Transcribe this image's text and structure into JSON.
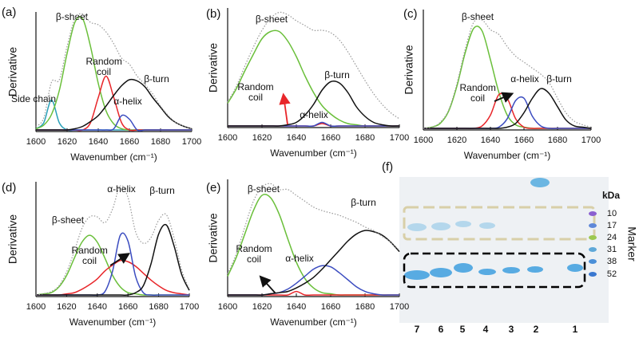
{
  "chart_data": [
    {
      "type": "line",
      "panel_label": "(a)",
      "xlabel": "Wavenumber (cm⁻¹)",
      "ylabel": "Derivative",
      "x": [
        1600,
        1605,
        1610,
        1615,
        1620,
        1625,
        1630,
        1635,
        1640,
        1645,
        1650,
        1655,
        1660,
        1665,
        1670,
        1675,
        1680,
        1685,
        1690,
        1695,
        1700
      ],
      "xlim": [
        1600,
        1700
      ],
      "xticks": [
        1600,
        1620,
        1640,
        1660,
        1680,
        1700
      ],
      "ylim": [
        0,
        1
      ],
      "series": [
        {
          "name": "Side chain",
          "color": "#2aa0b8",
          "values": [
            0.01,
            0.06,
            0.25,
            0.06,
            0,
            0,
            0,
            0,
            0,
            0,
            0,
            0,
            0,
            0,
            0,
            0,
            0,
            0,
            0,
            0,
            0
          ]
        },
        {
          "name": "β-sheet",
          "color": "#6abf3a",
          "values": [
            0.01,
            0.04,
            0.13,
            0.33,
            0.64,
            0.9,
            0.93,
            0.7,
            0.39,
            0.16,
            0.05,
            0.01,
            0,
            0,
            0,
            0,
            0,
            0,
            0,
            0,
            0
          ]
        },
        {
          "name": "Random coil",
          "color": "#e8262a",
          "values": [
            0,
            0,
            0,
            0,
            0,
            0,
            0,
            0.06,
            0.27,
            0.45,
            0.27,
            0.06,
            0,
            0,
            0,
            0,
            0,
            0,
            0,
            0,
            0
          ]
        },
        {
          "name": "α-helix",
          "color": "#3b4cc0",
          "values": [
            0,
            0,
            0,
            0,
            0,
            0,
            0,
            0,
            0,
            0,
            0.01,
            0.12,
            0.09,
            0,
            0,
            0,
            0,
            0,
            0,
            0,
            0
          ]
        },
        {
          "name": "β-turn",
          "color": "#111111",
          "values": [
            0,
            0,
            0,
            0,
            0,
            0.01,
            0.03,
            0.07,
            0.12,
            0.2,
            0.29,
            0.37,
            0.42,
            0.41,
            0.36,
            0.27,
            0.19,
            0.11,
            0.06,
            0.03,
            0.01
          ]
        },
        {
          "color": "#999999",
          "style": "dotted",
          "values": [
            0.03,
            0.1,
            0.4,
            0.42,
            0.7,
            0.93,
            0.97,
            0.9,
            0.88,
            0.82,
            0.72,
            0.6,
            0.55,
            0.45,
            0.38,
            0.3,
            0.2,
            0.12,
            0.06,
            0.03,
            0.01
          ]
        }
      ]
    },
    {
      "type": "line",
      "panel_label": "(b)",
      "xlabel": "Wavenumber (cm⁻¹)",
      "ylabel": "Derivative",
      "x": [
        1600,
        1605,
        1610,
        1615,
        1620,
        1625,
        1630,
        1635,
        1640,
        1645,
        1650,
        1655,
        1660,
        1665,
        1670,
        1675,
        1680,
        1685,
        1690,
        1695,
        1700
      ],
      "xlim": [
        1600,
        1700
      ],
      "xticks": [
        1600,
        1620,
        1640,
        1660,
        1680,
        1700
      ],
      "ylim": [
        0,
        1
      ],
      "series": [
        {
          "name": "β-sheet",
          "color": "#6abf3a",
          "values": [
            0.19,
            0.31,
            0.46,
            0.6,
            0.73,
            0.79,
            0.79,
            0.71,
            0.58,
            0.42,
            0.28,
            0.17,
            0.1,
            0.05,
            0.02,
            0.01,
            0,
            0,
            0,
            0,
            0
          ]
        },
        {
          "name": "Random coil",
          "color": "#e8262a",
          "values": [
            0,
            0,
            0,
            0,
            0,
            0,
            0,
            0,
            0,
            0,
            0,
            0.02,
            0,
            0,
            0,
            0,
            0,
            0,
            0,
            0,
            0
          ]
        },
        {
          "name": "α-helix",
          "color": "#3b4cc0",
          "values": [
            0,
            0,
            0,
            0,
            0,
            0,
            0,
            0,
            0,
            0,
            0,
            0.03,
            0,
            0,
            0,
            0,
            0,
            0,
            0,
            0,
            0
          ]
        },
        {
          "name": "β-turn",
          "color": "#111111",
          "values": [
            0,
            0,
            0,
            0,
            0,
            0,
            0,
            0.01,
            0.03,
            0.09,
            0.18,
            0.3,
            0.37,
            0.36,
            0.28,
            0.16,
            0.08,
            0.03,
            0.01,
            0,
            0
          ]
        },
        {
          "color": "#999999",
          "style": "dotted",
          "values": [
            0.2,
            0.33,
            0.5,
            0.66,
            0.8,
            0.9,
            0.95,
            0.93,
            0.88,
            0.84,
            0.8,
            0.8,
            0.78,
            0.72,
            0.62,
            0.5,
            0.38,
            0.27,
            0.18,
            0.11,
            0.06
          ]
        }
      ]
    },
    {
      "type": "line",
      "panel_label": "(c)",
      "xlabel": "Wavenumber (cm⁻¹)",
      "ylabel": "Derivative",
      "x": [
        1600,
        1605,
        1610,
        1615,
        1620,
        1625,
        1630,
        1635,
        1640,
        1645,
        1650,
        1655,
        1660,
        1665,
        1670,
        1675,
        1680,
        1685,
        1690,
        1695,
        1700
      ],
      "xlim": [
        1600,
        1700
      ],
      "xticks": [
        1600,
        1620,
        1640,
        1660,
        1680,
        1700
      ],
      "ylim": [
        0,
        1
      ],
      "series": [
        {
          "name": "β-sheet",
          "color": "#6abf3a",
          "values": [
            0,
            0.01,
            0.04,
            0.14,
            0.35,
            0.63,
            0.83,
            0.81,
            0.57,
            0.3,
            0.11,
            0.03,
            0.01,
            0,
            0,
            0,
            0,
            0,
            0,
            0,
            0
          ]
        },
        {
          "name": "Random coil",
          "color": "#e8262a",
          "values": [
            0,
            0,
            0,
            0,
            0,
            0,
            0,
            0.02,
            0.11,
            0.28,
            0.25,
            0.08,
            0.01,
            0,
            0,
            0,
            0,
            0,
            0,
            0,
            0
          ]
        },
        {
          "name": "α-helix",
          "color": "#3b4cc0",
          "values": [
            0,
            0,
            0,
            0,
            0,
            0,
            0,
            0,
            0,
            0.01,
            0.08,
            0.23,
            0.25,
            0.1,
            0.02,
            0,
            0,
            0,
            0,
            0,
            0
          ]
        },
        {
          "name": "β-turn",
          "color": "#111111",
          "values": [
            0,
            0,
            0,
            0,
            0,
            0,
            0,
            0,
            0,
            0,
            0.01,
            0.04,
            0.13,
            0.25,
            0.33,
            0.29,
            0.18,
            0.07,
            0.02,
            0.01,
            0
          ]
        },
        {
          "color": "#999999",
          "style": "dotted",
          "values": [
            0,
            0.01,
            0.05,
            0.15,
            0.37,
            0.66,
            0.88,
            0.9,
            0.82,
            0.78,
            0.68,
            0.6,
            0.55,
            0.5,
            0.45,
            0.38,
            0.25,
            0.13,
            0.06,
            0.03,
            0.01
          ]
        }
      ]
    },
    {
      "type": "line",
      "panel_label": "(d)",
      "xlabel": "Wavenumber (cm⁻¹)",
      "ylabel": "Derivative",
      "x": [
        1600,
        1605,
        1610,
        1615,
        1620,
        1625,
        1630,
        1635,
        1640,
        1645,
        1650,
        1655,
        1660,
        1665,
        1670,
        1675,
        1680,
        1685,
        1690,
        1695,
        1700
      ],
      "xlim": [
        1600,
        1700
      ],
      "xticks": [
        1600,
        1620,
        1640,
        1660,
        1680,
        1700
      ],
      "ylim": [
        0,
        1
      ],
      "series": [
        {
          "name": "β-sheet",
          "color": "#6abf3a",
          "values": [
            0,
            0.01,
            0.02,
            0.07,
            0.17,
            0.32,
            0.46,
            0.52,
            0.46,
            0.32,
            0.17,
            0.07,
            0.02,
            0.01,
            0,
            0,
            0,
            0,
            0,
            0,
            0
          ]
        },
        {
          "name": "Random coil",
          "color": "#e8262a",
          "values": [
            0,
            0,
            0,
            0,
            0.01,
            0.02,
            0.05,
            0.09,
            0.14,
            0.21,
            0.26,
            0.3,
            0.29,
            0.25,
            0.19,
            0.13,
            0.08,
            0.04,
            0.02,
            0.01,
            0
          ]
        },
        {
          "name": "α-helix",
          "color": "#3b4cc0",
          "values": [
            0,
            0,
            0,
            0,
            0,
            0,
            0,
            0,
            0,
            0.03,
            0.21,
            0.52,
            0.47,
            0.16,
            0.02,
            0,
            0,
            0,
            0,
            0,
            0
          ]
        },
        {
          "name": "β-turn",
          "color": "#111111",
          "values": [
            0,
            0,
            0,
            0,
            0,
            0,
            0,
            0,
            0,
            0,
            0,
            0,
            0,
            0.02,
            0.08,
            0.27,
            0.53,
            0.61,
            0.43,
            0.18,
            0.04
          ]
        },
        {
          "color": "#999999",
          "style": "dotted",
          "values": [
            0,
            0.01,
            0.03,
            0.08,
            0.2,
            0.38,
            0.58,
            0.68,
            0.68,
            0.63,
            0.75,
            0.95,
            0.85,
            0.55,
            0.45,
            0.5,
            0.65,
            0.7,
            0.5,
            0.22,
            0.05
          ]
        }
      ]
    },
    {
      "type": "line",
      "panel_label": "(e)",
      "xlabel": "Wavenumber (cm⁻¹)",
      "ylabel": "Derivative",
      "x": [
        1600,
        1605,
        1610,
        1615,
        1620,
        1625,
        1630,
        1635,
        1640,
        1645,
        1650,
        1655,
        1660,
        1665,
        1670,
        1675,
        1680,
        1685,
        1690,
        1695,
        1700
      ],
      "xlim": [
        1600,
        1700
      ],
      "xticks": [
        1600,
        1620,
        1640,
        1660,
        1680,
        1700
      ],
      "ylim": [
        0,
        1
      ],
      "series": [
        {
          "name": "β-sheet",
          "color": "#6abf3a",
          "values": [
            0.16,
            0.32,
            0.52,
            0.72,
            0.85,
            0.83,
            0.69,
            0.48,
            0.28,
            0.14,
            0.06,
            0.02,
            0.01,
            0,
            0,
            0,
            0,
            0,
            0,
            0,
            0
          ]
        },
        {
          "name": "Random coil",
          "color": "#e8262a",
          "values": [
            0,
            0,
            0,
            0,
            0,
            0,
            0,
            0,
            0.03,
            0,
            0,
            0,
            0,
            0,
            0,
            0,
            0,
            0,
            0,
            0,
            0
          ]
        },
        {
          "name": "α-helix",
          "color": "#3b4cc0",
          "values": [
            0,
            0,
            0,
            0,
            0,
            0.01,
            0.02,
            0.05,
            0.1,
            0.16,
            0.22,
            0.25,
            0.24,
            0.19,
            0.13,
            0.07,
            0.03,
            0.01,
            0,
            0,
            0
          ]
        },
        {
          "name": "β-turn",
          "color": "#111111",
          "values": [
            0,
            0,
            0,
            0,
            0,
            0.01,
            0.02,
            0.03,
            0.06,
            0.1,
            0.15,
            0.22,
            0.3,
            0.38,
            0.46,
            0.52,
            0.55,
            0.54,
            0.51,
            0.45,
            0.37
          ]
        },
        {
          "color": "#999999",
          "style": "dotted",
          "values": [
            0.18,
            0.35,
            0.58,
            0.8,
            0.92,
            0.95,
            0.9,
            0.9,
            0.85,
            0.8,
            0.75,
            0.72,
            0.7,
            0.68,
            0.65,
            0.62,
            0.58,
            0.55,
            0.5,
            0.45,
            0.38
          ]
        }
      ]
    }
  ],
  "gel": {
    "panel_label": "(f)",
    "unit": "kDa",
    "marker_label": "Marker",
    "markers": [
      10,
      17,
      24,
      31,
      38,
      52
    ],
    "lanes": [
      "7",
      "6",
      "5",
      "4",
      "3",
      "2",
      "1"
    ]
  }
}
